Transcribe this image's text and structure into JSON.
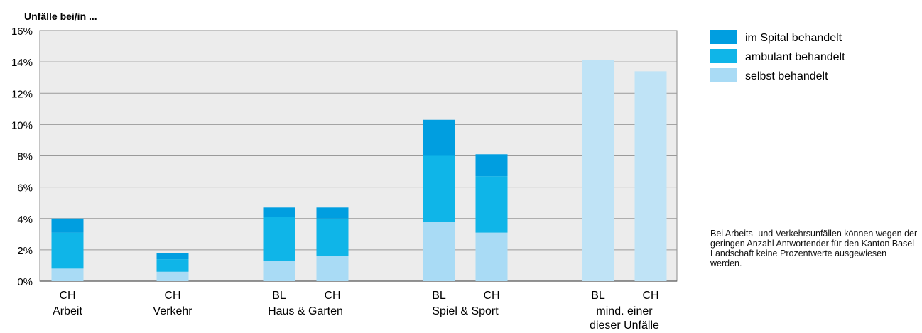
{
  "chart_data": {
    "type": "bar",
    "stacked": true,
    "title": "Unfälle bei/in ...",
    "ylim": [
      0,
      16
    ],
    "yticks": [
      "0%",
      "2%",
      "4%",
      "6%",
      "8%",
      "10%",
      "12%",
      "14%",
      "16%"
    ],
    "grid": true,
    "legend_position": "right",
    "colors": {
      "plot_background": "#ececec",
      "gridline": "#9a9a9a",
      "im_spital": "#009ee0",
      "ambulant": "#0fb5e8",
      "selbst": "#a9dbf5",
      "selbst_total": "#bfe3f6"
    },
    "series": [
      {
        "name": "im Spital behandelt",
        "color": "#009ee0"
      },
      {
        "name": "ambulant behandelt",
        "color": "#0fb5e8"
      },
      {
        "name": "selbst behandelt",
        "color": "#a9dbf5"
      }
    ],
    "bars": [
      {
        "group": "Arbeit",
        "region": "CH",
        "selbst": 0.8,
        "ambulant": 2.3,
        "spital": 0.9
      },
      {
        "group": "Verkehr",
        "region": "CH",
        "selbst": 0.6,
        "ambulant": 0.8,
        "spital": 0.4
      },
      {
        "group": "Haus & Garten",
        "region": "BL",
        "selbst": 1.3,
        "ambulant": 2.8,
        "spital": 0.6
      },
      {
        "group": "Haus & Garten",
        "region": "CH",
        "selbst": 1.6,
        "ambulant": 2.4,
        "spital": 0.7
      },
      {
        "group": "Spiel & Sport",
        "region": "BL",
        "selbst": 3.8,
        "ambulant": 4.2,
        "spital": 2.3
      },
      {
        "group": "Spiel & Sport",
        "region": "CH",
        "selbst": 3.1,
        "ambulant": 3.6,
        "spital": 1.4
      },
      {
        "group": "mind. einer dieser Unfälle",
        "region": "BL",
        "total": 14.1
      },
      {
        "group": "mind. einer dieser Unfälle",
        "region": "CH",
        "total": 13.4
      }
    ],
    "group_labels": [
      {
        "lines": [
          "Arbeit"
        ]
      },
      {
        "lines": [
          "Verkehr"
        ]
      },
      {
        "lines": [
          "Haus & Garten"
        ]
      },
      {
        "lines": [
          "Spiel & Sport"
        ]
      },
      {
        "lines": [
          "mind. einer",
          "dieser Unfälle"
        ]
      }
    ]
  },
  "note": "Bei Arbeits- und Verkehrsunfällen können wegen der geringen Anzahl Antwortender für den Kanton Basel-Landschaft keine Prozentwerte ausgewiesen werden."
}
